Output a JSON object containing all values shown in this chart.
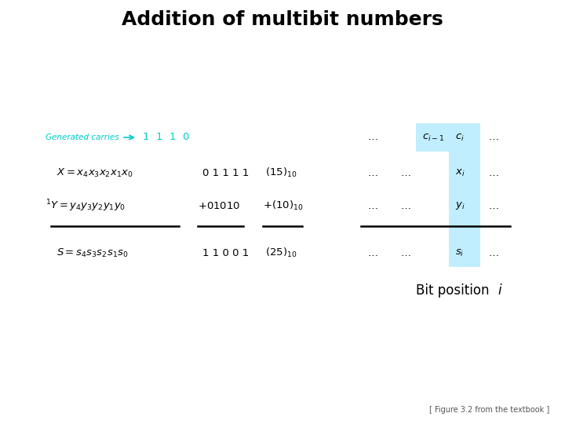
{
  "title": "Addition of multibit numbers",
  "title_fontsize": 18,
  "title_fontweight": "bold",
  "bg_color": "#ffffff",
  "cyan_color": "#00CCCC",
  "cyan_bg": "#C0EEFF",
  "text_color": "#000000",
  "gray_text": "#555555",
  "figure_caption": "[ Figure 3.2 from the textbook ]",
  "bit_position_label": "Bit position ",
  "bit_position_i": "i"
}
